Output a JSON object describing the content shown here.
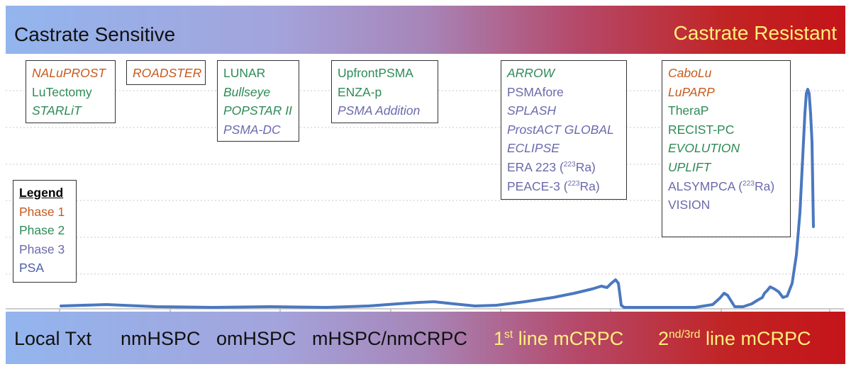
{
  "header": {
    "left_label": "Castrate Sensitive",
    "right_label": "Castrate Resistant"
  },
  "stages": {
    "local": "Local Txt",
    "nmhspc": "nmHSPC",
    "omhspc": "omHSPC",
    "mhspc": "mHSPC/nmCRPC",
    "first_num": "1",
    "first_sup": "st",
    "first_rest": " line mCRPC",
    "second_num": "2",
    "second_sup": "nd/3rd",
    "second_rest": " line mCRPC"
  },
  "legend": {
    "title": "Legend",
    "items": [
      {
        "label": "Phase 1",
        "color": "#c65a1e"
      },
      {
        "label": "Phase 2",
        "color": "#2e8b57"
      },
      {
        "label": "Phase 3",
        "color": "#6a6aac"
      },
      {
        "label": "PSA",
        "color": "#4a5fa8"
      }
    ]
  },
  "trial_groups": [
    {
      "trials": [
        {
          "name": "NALuPROST",
          "phase": 1,
          "italic": true
        },
        {
          "name": "LuTectomy",
          "phase": 2,
          "italic": false
        },
        {
          "name": "STARLiT",
          "phase": 2,
          "italic": true
        }
      ]
    },
    {
      "trials": [
        {
          "name": "ROADSTER",
          "phase": 1,
          "italic": true
        }
      ]
    },
    {
      "trials": [
        {
          "name": "LUNAR",
          "phase": 2,
          "italic": false
        },
        {
          "name": "Bullseye",
          "phase": 2,
          "italic": true
        },
        {
          "name": "POPSTAR II",
          "phase": 2,
          "italic": true
        },
        {
          "name": "PSMA-DC",
          "phase": 3,
          "italic": true
        }
      ]
    },
    {
      "trials": [
        {
          "name": "UpfrontPSMA",
          "phase": 2,
          "italic": false
        },
        {
          "name": "ENZA-p",
          "phase": 2,
          "italic": false
        },
        {
          "name": "PSMA Addition",
          "phase": 3,
          "italic": true
        }
      ]
    },
    {
      "trials": [
        {
          "name": "ARROW",
          "phase": 2,
          "italic": true
        },
        {
          "name": "PSMAfore",
          "phase": 3,
          "italic": false
        },
        {
          "name": "SPLASH",
          "phase": 3,
          "italic": true
        },
        {
          "name": "ProstACT GLOBAL",
          "phase": 3,
          "italic": true
        },
        {
          "name": "ECLIPSE",
          "phase": 3,
          "italic": true
        },
        {
          "name": "ERA 223 (",
          "sup": "223",
          "suffix": "Ra)",
          "phase": 3,
          "italic": false
        },
        {
          "name": "PEACE-3 (",
          "sup": "223",
          "suffix": "Ra)",
          "phase": 3,
          "italic": false
        }
      ]
    },
    {
      "trials": [
        {
          "name": "CaboLu",
          "phase": 1,
          "italic": true
        },
        {
          "name": "LuPARP",
          "phase": 1,
          "italic": true
        },
        {
          "name": "TheraP",
          "phase": 2,
          "italic": false
        },
        {
          "name": "RECIST-PC",
          "phase": 2,
          "italic": false
        },
        {
          "name": "EVOLUTION",
          "phase": 2,
          "italic": true
        },
        {
          "name": "UPLIFT",
          "phase": 2,
          "italic": true
        },
        {
          "name": "ALSYMPCA (",
          "sup": "223",
          "suffix": "Ra)",
          "phase": 3,
          "italic": false
        },
        {
          "name": "VISION",
          "phase": 3,
          "italic": false
        }
      ]
    }
  ],
  "colors": {
    "curve": "#4a78c0",
    "grid": "#c8c8c8"
  }
}
